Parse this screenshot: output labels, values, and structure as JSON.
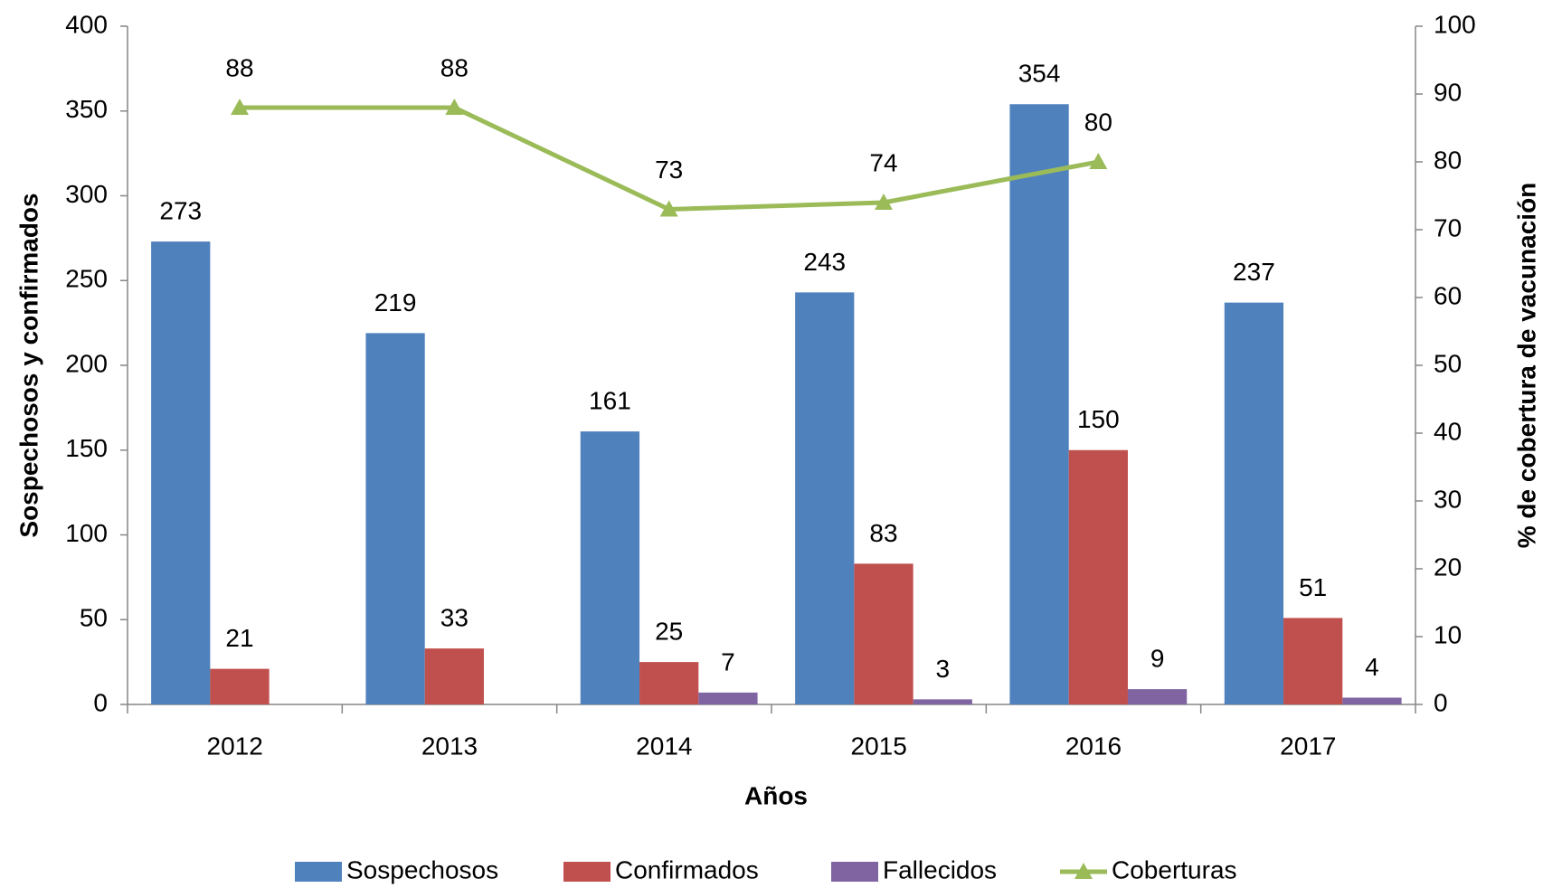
{
  "chart_data": {
    "type": "bar",
    "xlabel": "Años",
    "ylabel": "Sospechosos y confirmados",
    "y2label": "% de cobertura de vacunación",
    "categories": [
      "2012",
      "2013",
      "2014",
      "2015",
      "2016",
      "2017"
    ],
    "series": [
      {
        "name": "Sospechosos",
        "color": "#4f81bd",
        "values": [
          273,
          219,
          161,
          243,
          354,
          237
        ]
      },
      {
        "name": "Confirmados",
        "color": "#c0504d",
        "values": [
          21,
          33,
          25,
          83,
          150,
          51
        ]
      },
      {
        "name": "Fallecidos",
        "color": "#8064a2",
        "values": [
          null,
          null,
          7,
          3,
          9,
          4
        ]
      },
      {
        "name": "Coberturas",
        "color": "#9bbb59",
        "type": "line",
        "axis": "y2",
        "values": [
          88,
          88,
          73,
          74,
          80,
          null
        ]
      }
    ],
    "ylim": [
      0,
      400
    ],
    "yticks": [
      0,
      50,
      100,
      150,
      200,
      250,
      300,
      350,
      400
    ],
    "y2lim": [
      0,
      100
    ],
    "y2ticks": [
      0,
      10,
      20,
      30,
      40,
      50,
      60,
      70,
      80,
      90,
      100
    ],
    "legend": "bottom"
  }
}
